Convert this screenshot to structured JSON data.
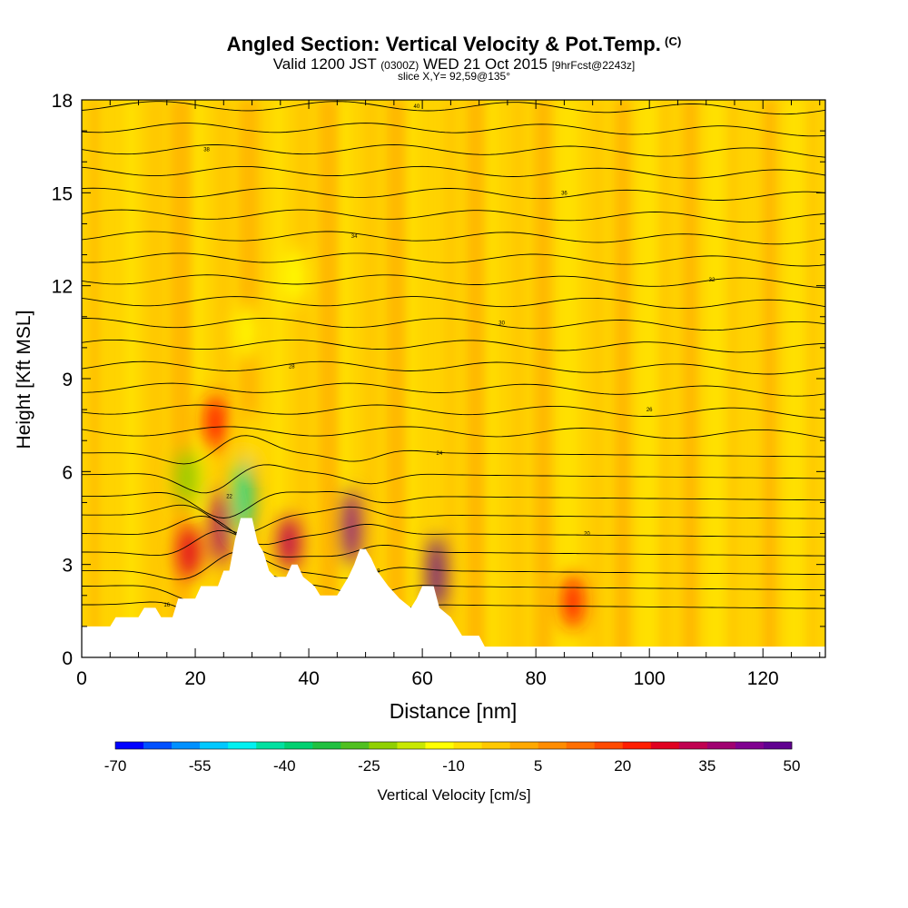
{
  "title": {
    "main": "Angled Section: Vertical Velocity & Pot.Temp.",
    "main_unit": "(C)",
    "valid_prefix": "Valid 1200 JST",
    "valid_zulu": "(0300Z)",
    "valid_date": "WED 21 Oct 2015",
    "forecast": "[9hrFcst@2243z]",
    "slice": "slice X,Y= 92,59@135°"
  },
  "chart_data": {
    "type": "heatmap",
    "xlabel": "Distance [nm]",
    "ylabel": "Height [Kft MSL]",
    "xlim": [
      0,
      131
    ],
    "ylim": [
      0,
      18
    ],
    "x_ticks": [
      0,
      20,
      40,
      60,
      80,
      100,
      120
    ],
    "y_ticks": [
      0,
      3,
      6,
      9,
      12,
      15,
      18
    ],
    "colorbar": {
      "label": "Vertical Velocity [cm/s]",
      "ticks": [
        -70,
        -55,
        -40,
        -25,
        -10,
        5,
        20,
        35,
        50
      ],
      "colors": [
        "#0000ff",
        "#0050ff",
        "#0090ff",
        "#00c8ff",
        "#00f0f0",
        "#00e0a0",
        "#00d070",
        "#20c040",
        "#50c020",
        "#90d000",
        "#c8e800",
        "#ffff00",
        "#ffe000",
        "#ffc800",
        "#ffa800",
        "#ff8c00",
        "#ff6e00",
        "#ff4a00",
        "#ff1e00",
        "#e00020",
        "#c00050",
        "#a00070",
        "#800090",
        "#600090"
      ]
    },
    "terrain_profile": [
      [
        0,
        1.0
      ],
      [
        5,
        1.0
      ],
      [
        6,
        1.3
      ],
      [
        10,
        1.3
      ],
      [
        11,
        1.6
      ],
      [
        13,
        1.6
      ],
      [
        14,
        1.3
      ],
      [
        16,
        1.3
      ],
      [
        17,
        1.9
      ],
      [
        20,
        1.9
      ],
      [
        21,
        2.3
      ],
      [
        24,
        2.3
      ],
      [
        25,
        2.8
      ],
      [
        26,
        2.8
      ],
      [
        27,
        3.8
      ],
      [
        28,
        4.5
      ],
      [
        30,
        4.5
      ],
      [
        31,
        3.7
      ],
      [
        32,
        3.4
      ],
      [
        33,
        2.8
      ],
      [
        34,
        2.6
      ],
      [
        36,
        2.6
      ],
      [
        37,
        3.0
      ],
      [
        38,
        3.0
      ],
      [
        39,
        2.6
      ],
      [
        41,
        2.3
      ],
      [
        42,
        2.0
      ],
      [
        45,
        2.0
      ],
      [
        46,
        2.3
      ],
      [
        47,
        2.6
      ],
      [
        48,
        3.0
      ],
      [
        49,
        3.5
      ],
      [
        50,
        3.5
      ],
      [
        51,
        3.2
      ],
      [
        52,
        2.8
      ],
      [
        54,
        2.3
      ],
      [
        56,
        1.9
      ],
      [
        58,
        1.6
      ],
      [
        59,
        1.9
      ],
      [
        60,
        2.3
      ],
      [
        62,
        2.3
      ],
      [
        63,
        1.6
      ],
      [
        65,
        1.3
      ],
      [
        66,
        1.0
      ],
      [
        67,
        0.7
      ],
      [
        70,
        0.7
      ],
      [
        71,
        0.35
      ],
      [
        131,
        0.35
      ]
    ],
    "vv_features": [
      {
        "x": 18.5,
        "z": 5.8,
        "v": -25
      },
      {
        "x": 28.5,
        "z": 5.2,
        "v": -45
      },
      {
        "x": 30,
        "z": 7.0,
        "v": -10
      },
      {
        "x": 29,
        "z": 10.5,
        "v": -15
      },
      {
        "x": 37.5,
        "z": 12.3,
        "v": -15
      },
      {
        "x": 24.5,
        "z": 4.2,
        "v": 35
      },
      {
        "x": 19,
        "z": 3.4,
        "v": 25
      },
      {
        "x": 36.5,
        "z": 3.7,
        "v": 30
      },
      {
        "x": 47.5,
        "z": 4.2,
        "v": 40
      },
      {
        "x": 62.5,
        "z": 2.7,
        "v": 50
      },
      {
        "x": 86.5,
        "z": 1.8,
        "v": 20
      },
      {
        "x": 23.5,
        "z": 7.6,
        "v": 20
      }
    ],
    "theta_labels": [
      "16",
      "18",
      "20",
      "22",
      "24",
      "26",
      "28",
      "30",
      "32",
      "34",
      "36",
      "38",
      "40"
    ],
    "theta_contour_levels_kft": [
      1.7,
      2.3,
      2.8,
      3.4,
      4.0,
      4.6,
      5.2,
      5.9,
      6.6,
      7.3,
      8.0,
      8.7,
      9.4,
      10.1,
      10.8,
      11.5,
      12.2,
      12.9,
      13.6,
      14.3,
      15.0,
      15.7,
      16.4,
      17.1,
      17.8
    ]
  }
}
